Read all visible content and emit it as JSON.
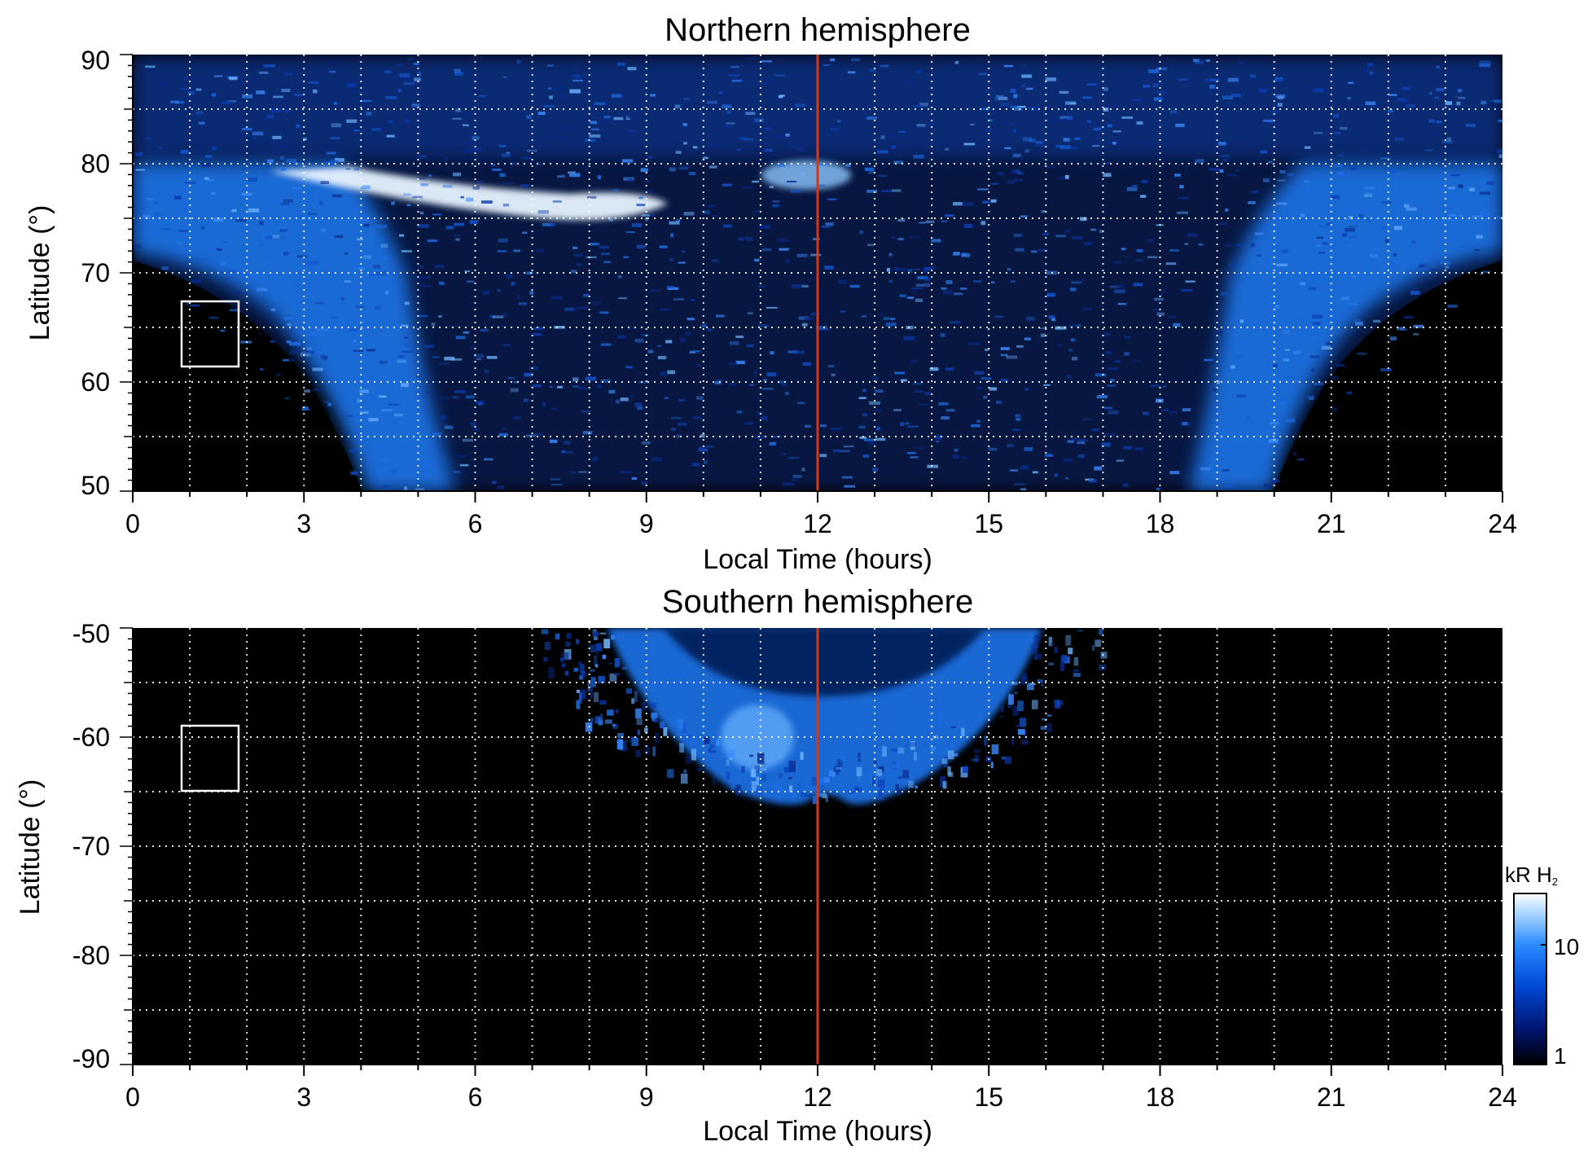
{
  "chart_data": [
    {
      "type": "heatmap",
      "title": "Northern hemisphere",
      "xlabel": "Local Time (hours)",
      "ylabel": "Latitude (°)",
      "xlim": [
        0,
        24
      ],
      "ylim": [
        50,
        90
      ],
      "x_ticks": [
        "0",
        "3",
        "6",
        "9",
        "12",
        "15",
        "18",
        "21",
        "24"
      ],
      "y_ticks": [
        "50",
        "60",
        "70",
        "80",
        "90"
      ],
      "y_tick_values": [
        50,
        60,
        70,
        80,
        90
      ],
      "grid": true,
      "marker_line_x": 12,
      "marker_box": {
        "x": [
          0.85,
          1.85
        ],
        "y": [
          61.5,
          67.5
        ]
      },
      "regions": [
        {
          "feature": "oval",
          "x": [
            0,
            4.2
          ],
          "y": [
            68,
            80
          ],
          "intensity": 9
        },
        {
          "feature": "oval",
          "x": [
            19.8,
            24
          ],
          "y": [
            68,
            80
          ],
          "intensity": 9
        },
        {
          "feature": "bright arc",
          "x": [
            2.5,
            9.2
          ],
          "y": [
            74,
            79
          ],
          "intensity": 18
        }
      ]
    },
    {
      "type": "heatmap",
      "title": "Southern hemisphere",
      "xlabel": "Local Time (hours)",
      "ylabel": "Latitude (°)",
      "xlim": [
        0,
        24
      ],
      "ylim": [
        -90,
        -50
      ],
      "x_ticks": [
        "0",
        "3",
        "6",
        "9",
        "12",
        "15",
        "18",
        "21",
        "24"
      ],
      "y_ticks": [
        "-50",
        "-60",
        "-70",
        "-80",
        "-90"
      ],
      "y_tick_values": [
        -50,
        -60,
        -70,
        -80,
        -90
      ],
      "grid": true,
      "marker_line_x": 12,
      "marker_box": {
        "x": [
          0.85,
          1.85
        ],
        "y": [
          -65,
          -59
        ]
      },
      "regions": [
        {
          "feature": "oval",
          "x": [
            8.5,
            16
          ],
          "y": [
            -67,
            -50
          ],
          "intensity": 9
        }
      ]
    }
  ],
  "colorbar": {
    "label_main": "kR H",
    "label_sub": "2",
    "ticks": [
      "1",
      "10"
    ],
    "range": [
      1,
      20
    ],
    "scale": "log",
    "colors": [
      "#000000",
      "#00146e",
      "#0046d2",
      "#2a8cff",
      "#b4dcff",
      "#ffffff"
    ]
  },
  "colors": {
    "background": "#000000",
    "marker_line": "#d03a1a",
    "grid": "#ffffff",
    "box": "#ffffff"
  }
}
